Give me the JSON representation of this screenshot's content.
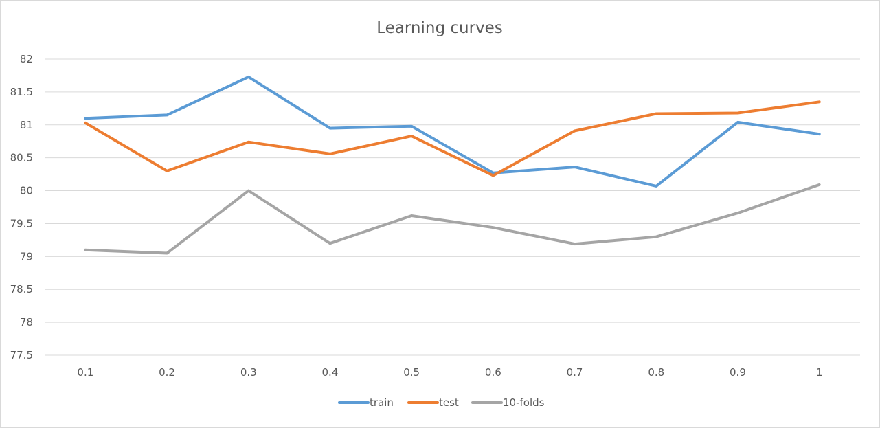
{
  "chart_data": {
    "type": "line",
    "title": "Learning curves",
    "xlabel": "",
    "ylabel": "",
    "categories": [
      "0.1",
      "0.2",
      "0.3",
      "0.4",
      "0.5",
      "0.6",
      "0.7",
      "0.8",
      "0.9",
      "1"
    ],
    "ylim": [
      77.5,
      82
    ],
    "yticks": [
      "77.5",
      "78",
      "78.5",
      "79",
      "79.5",
      "80",
      "80.5",
      "81",
      "81.5",
      "82"
    ],
    "grid": true,
    "legend_position": "bottom",
    "series": [
      {
        "name": "train",
        "color": "#5b9bd5",
        "values": [
          81.1,
          81.15,
          81.73,
          80.95,
          80.98,
          80.27,
          80.36,
          80.07,
          81.04,
          80.86
        ]
      },
      {
        "name": "test",
        "color": "#ed7d31",
        "values": [
          81.03,
          80.3,
          80.74,
          80.56,
          80.83,
          80.23,
          80.91,
          81.17,
          81.18,
          81.35
        ]
      },
      {
        "name": "10-folds",
        "color": "#a5a5a5",
        "values": [
          79.1,
          79.05,
          80.0,
          79.2,
          79.62,
          79.44,
          79.19,
          79.3,
          79.66,
          80.09
        ]
      }
    ]
  }
}
